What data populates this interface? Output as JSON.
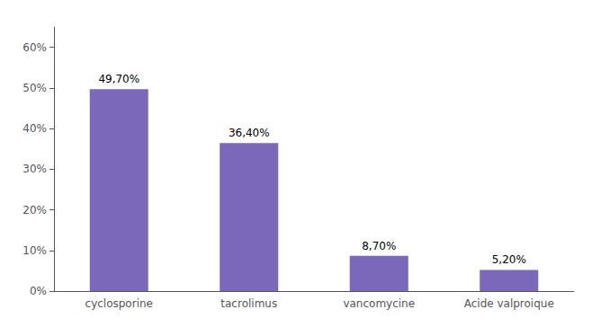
{
  "chart_data": {
    "type": "bar",
    "categories": [
      "cyclosporine",
      "tacrolimus",
      "vancomycine",
      "Acide valproique"
    ],
    "values": [
      49.7,
      36.4,
      8.7,
      5.2
    ],
    "value_labels": [
      "49,70%",
      "36,40%",
      "8,70%",
      "5,20%"
    ],
    "data_labels": true,
    "color": "#7B68BB",
    "ylim": [
      0,
      65
    ],
    "yticks": [
      {
        "value": 0,
        "label": "0%"
      },
      {
        "value": 10,
        "label": "10%"
      },
      {
        "value": 20,
        "label": "20%"
      },
      {
        "value": 30,
        "label": "30%"
      },
      {
        "value": 40,
        "label": "40%"
      },
      {
        "value": 50,
        "label": "50%"
      },
      {
        "value": 60,
        "label": "60%"
      }
    ],
    "grid": false
  }
}
